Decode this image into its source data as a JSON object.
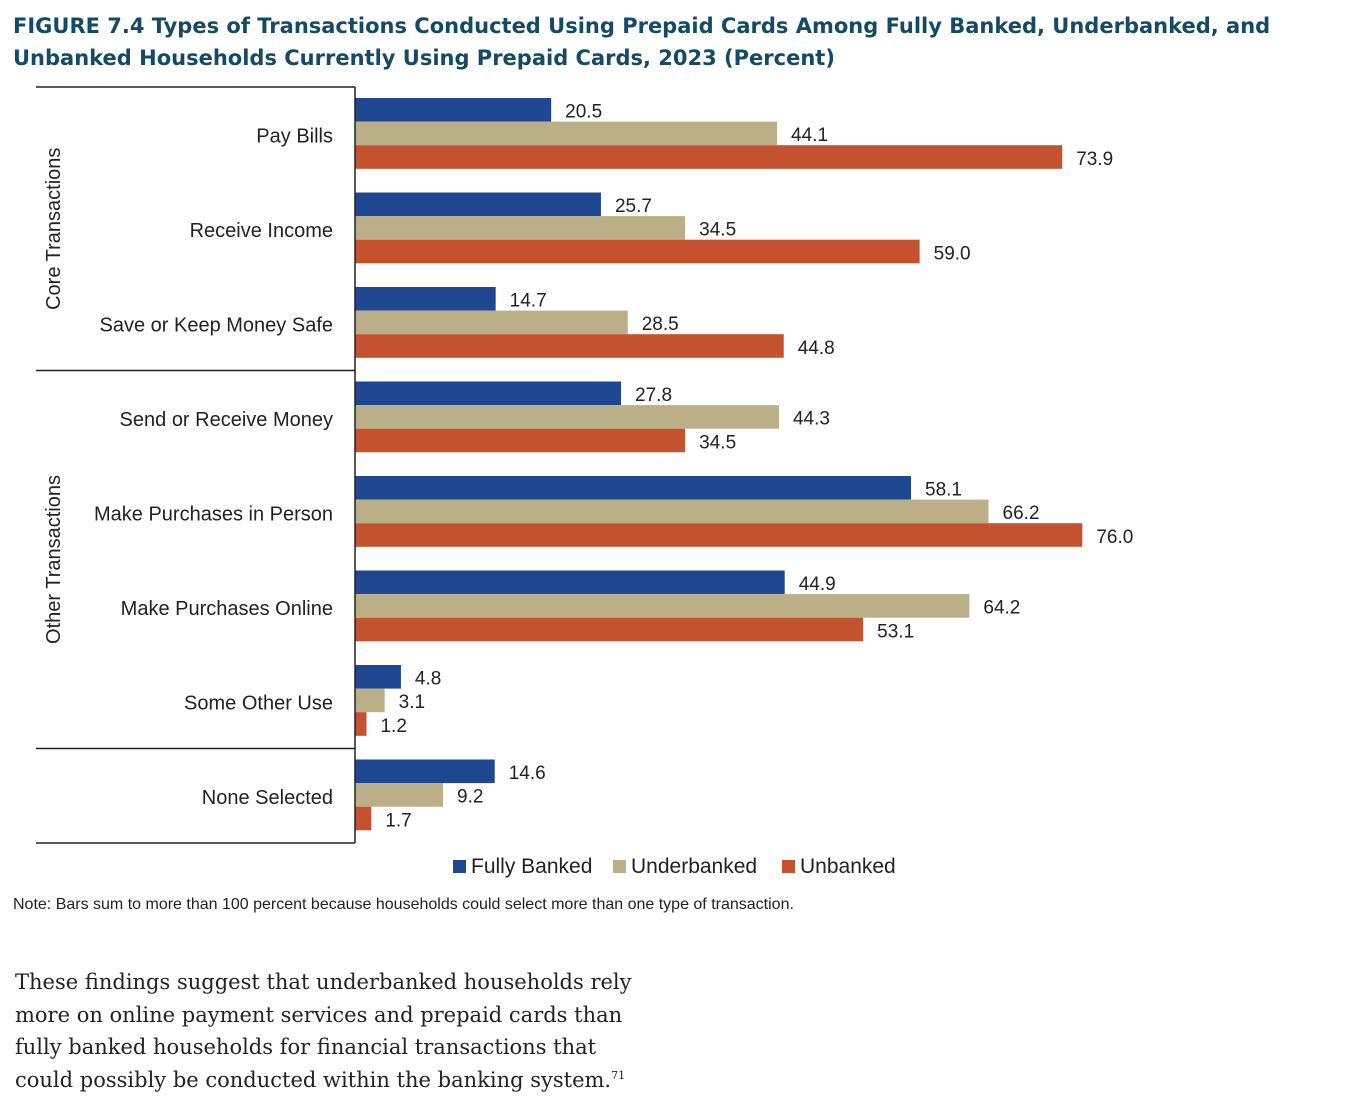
{
  "figure_title": "FIGURE 7.4 Types of Transactions Conducted Using Prepaid Cards Among Fully Banked, Underbanked, and Unbanked Households Currently Using Prepaid Cards, 2023 (Percent)",
  "note": "Note: Bars sum to more than 100 percent because households could select more than one type of transaction.",
  "body_text": "These findings suggest that underbanked households rely more on online payment services and prepaid cards than fully banked households for financial transactions that could possibly be conducted within the banking system.",
  "footnote_ref": "71",
  "chart_data": {
    "type": "bar",
    "orientation": "horizontal",
    "categories": [
      "Pay Bills",
      "Receive Income",
      "Save or Keep Money Safe",
      "Send or Receive Money",
      "Make Purchases in Person",
      "Make Purchases Online",
      "Some Other Use",
      "None Selected"
    ],
    "groups": [
      {
        "label": "Core Transactions",
        "categories": [
          "Pay Bills",
          "Receive Income",
          "Save or Keep Money Safe"
        ]
      },
      {
        "label": "Other Transactions",
        "categories": [
          "Send or Receive Money",
          "Make Purchases in Person",
          "Make Purchases Online",
          "Some Other Use"
        ]
      },
      {
        "label": "",
        "categories": [
          "None Selected"
        ]
      }
    ],
    "series": [
      {
        "name": "Fully Banked",
        "color": "#1f4690",
        "values": [
          20.5,
          25.7,
          14.7,
          27.8,
          58.1,
          44.9,
          4.8,
          14.6
        ]
      },
      {
        "name": "Underbanked",
        "color": "#bbaf87",
        "values": [
          44.1,
          34.5,
          28.5,
          44.3,
          66.2,
          64.2,
          3.1,
          9.2
        ]
      },
      {
        "name": "Unbanked",
        "color": "#c5522f",
        "values": [
          73.9,
          59.0,
          44.8,
          34.5,
          76.0,
          53.1,
          1.2,
          1.7
        ]
      }
    ],
    "xlim": [
      0,
      100
    ],
    "legend_position": "bottom",
    "grid": false
  }
}
